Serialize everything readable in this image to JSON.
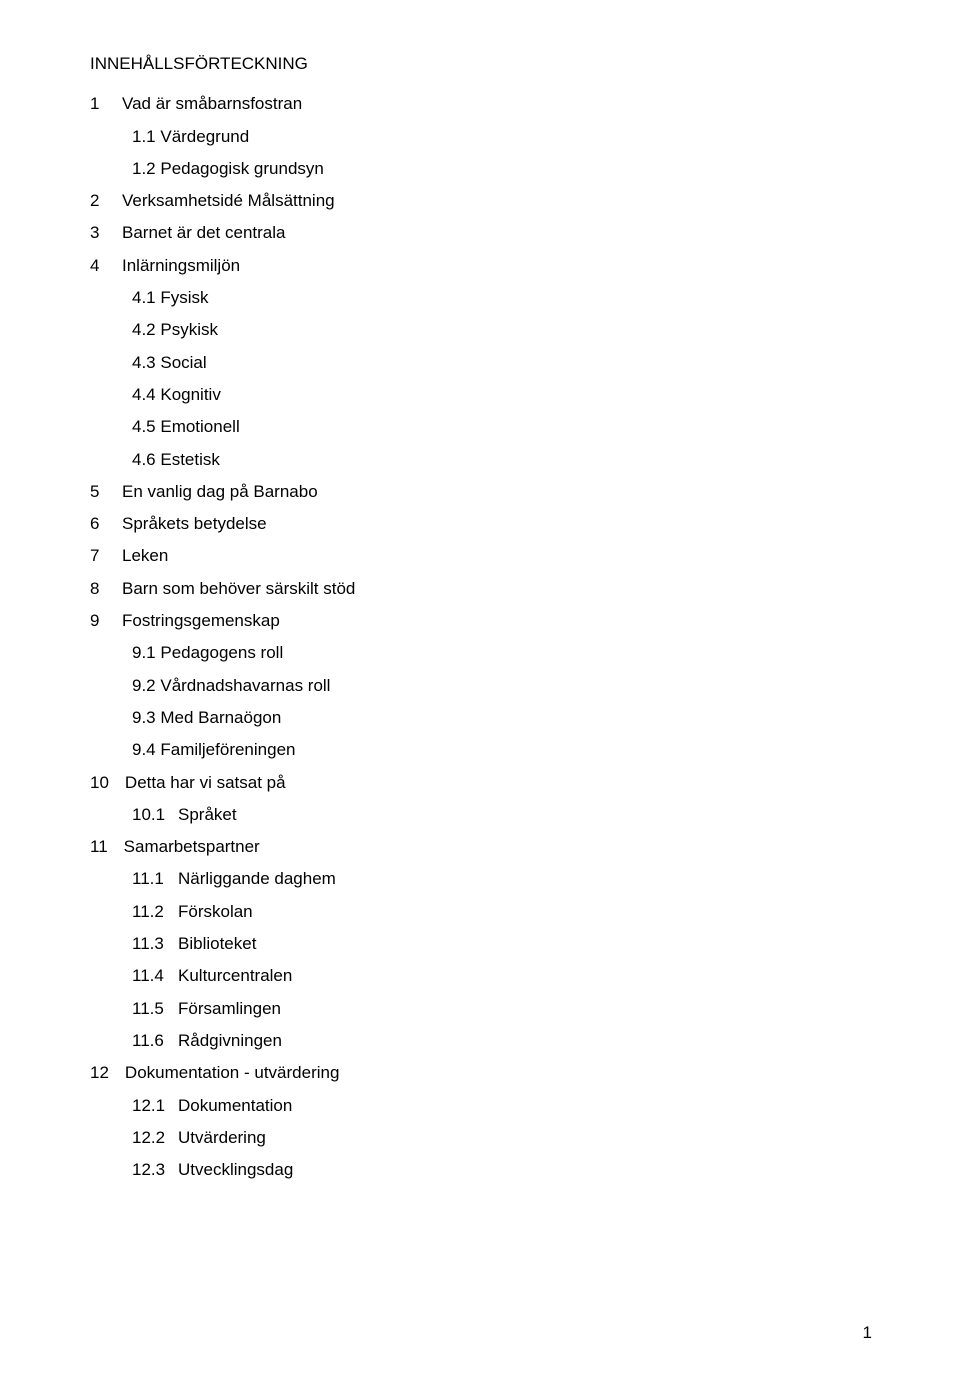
{
  "title": "INNEHÅLLSFÖRTECKNING",
  "entries": [
    {
      "num": "1",
      "text": "Vad är småbarnsfostran"
    },
    {
      "sub": true,
      "text": "1.1 Värdegrund"
    },
    {
      "sub": true,
      "text": "1.2 Pedagogisk grundsyn"
    },
    {
      "num": "2",
      "text": "Verksamhetsidé Målsättning"
    },
    {
      "num": "3",
      "text": "Barnet är det centrala"
    },
    {
      "num": "4",
      "text": "Inlärningsmiljön"
    },
    {
      "sub": true,
      "text": "4.1 Fysisk"
    },
    {
      "sub": true,
      "text": "4.2 Psykisk"
    },
    {
      "sub": true,
      "text": "4.3 Social"
    },
    {
      "sub": true,
      "text": "4.4 Kognitiv"
    },
    {
      "sub": true,
      "text": "4.5 Emotionell"
    },
    {
      "sub": true,
      "text": "4.6 Estetisk"
    },
    {
      "num": "5",
      "text": "En vanlig dag på Barnabo"
    },
    {
      "num": "6",
      "text": "Språkets betydelse"
    },
    {
      "num": "7",
      "text": "Leken"
    },
    {
      "num": "8",
      "text": "Barn som behöver särskilt stöd"
    },
    {
      "num": "9",
      "text": "Fostringsgemenskap"
    },
    {
      "sub": true,
      "text": "9.1 Pedagogens roll"
    },
    {
      "sub": true,
      "text": "9.2 Vårdnadshavarnas roll"
    },
    {
      "sub": true,
      "text": "9.3 Med Barnaögon"
    },
    {
      "sub": true,
      "text": "9.4 Familjeföreningen"
    },
    {
      "num": "10",
      "text": "Detta har vi satsat på"
    },
    {
      "sub2": true,
      "subnum": "10.1",
      "text": "Språket"
    },
    {
      "num": "11",
      "text": "Samarbetspartner"
    },
    {
      "sub2": true,
      "subnum": "11.1",
      "text": "Närliggande daghem"
    },
    {
      "sub2": true,
      "subnum": "11.2",
      "text": "Förskolan"
    },
    {
      "sub2": true,
      "subnum": "11.3",
      "text": "Biblioteket"
    },
    {
      "sub2": true,
      "subnum": "11.4",
      "text": "Kulturcentralen"
    },
    {
      "sub2": true,
      "subnum": "11.5",
      "text": "Församlingen"
    },
    {
      "sub2": true,
      "subnum": "11.6",
      "text": "Rådgivningen"
    },
    {
      "num": "12",
      "text": "Dokumentation - utvärdering"
    },
    {
      "sub2": true,
      "subnum": "12.1",
      "text": "Dokumentation"
    },
    {
      "sub2": true,
      "subnum": "12.2",
      "text": "Utvärdering"
    },
    {
      "sub2": true,
      "subnum": "12.3",
      "text": "Utvecklingsdag"
    }
  ],
  "pageNumber": "1"
}
